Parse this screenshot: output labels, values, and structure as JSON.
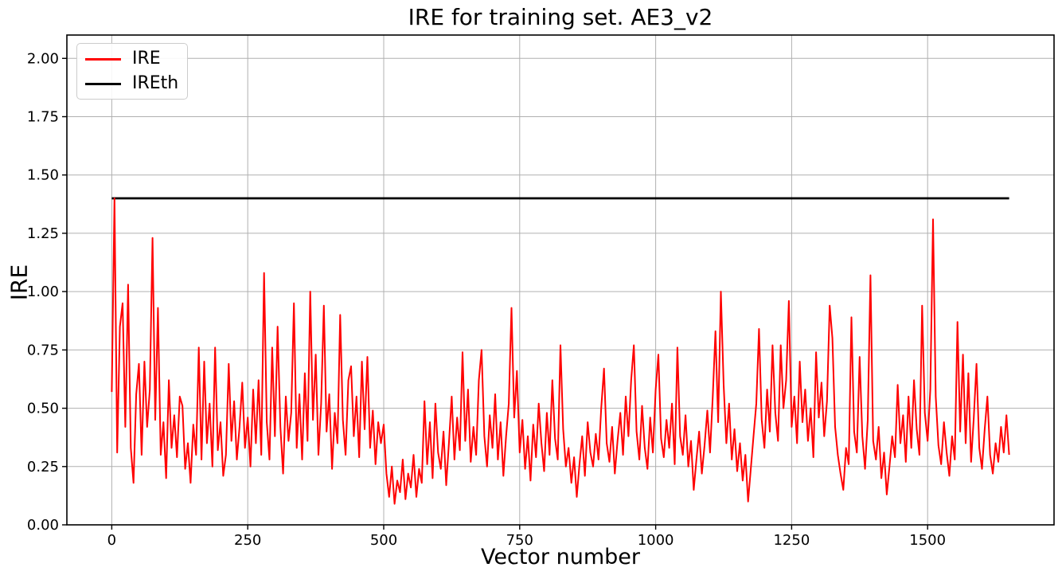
{
  "figure": {
    "title": "IRE for training set. AE3_v2",
    "xlabel": "Vector number",
    "ylabel": "IRE"
  },
  "legend": {
    "position": "upper left",
    "items": [
      {
        "label": "IRE",
        "color": "#ff0000"
      },
      {
        "label": "IREth",
        "color": "#000000"
      }
    ]
  },
  "chart_data": {
    "type": "line",
    "title": "IRE for training set. AE3_v2",
    "xlabel": "Vector number",
    "ylabel": "IRE",
    "grid": true,
    "grid_color": "#b0b0b0",
    "background": "#ffffff",
    "legend_position": "upper left",
    "xlim": [
      -82.5,
      1732.5
    ],
    "ylim": [
      0,
      2.1
    ],
    "xticks": {
      "values": [
        0,
        250,
        500,
        750,
        1000,
        1250,
        1500
      ],
      "labels": [
        "0",
        "250",
        "500",
        "750",
        "1000",
        "1250",
        "1500"
      ]
    },
    "yticks": {
      "values": [
        0,
        0.25,
        0.5,
        0.75,
        1.0,
        1.25,
        1.5,
        1.75,
        2.0
      ],
      "labels": [
        "0.00",
        "0.25",
        "0.50",
        "0.75",
        "1.00",
        "1.25",
        "1.50",
        "1.75",
        "2.00"
      ]
    },
    "series": [
      {
        "name": "IRE",
        "color": "#ff0000",
        "line_width": 2,
        "x_start": 0,
        "x_step": 5,
        "sampling": "downsampled estimate of ~1650-point noisy trace, step 5",
        "values": [
          0.57,
          1.4,
          0.31,
          0.85,
          0.95,
          0.42,
          1.03,
          0.33,
          0.18,
          0.56,
          0.69,
          0.3,
          0.7,
          0.42,
          0.58,
          1.23,
          0.45,
          0.93,
          0.3,
          0.44,
          0.2,
          0.62,
          0.33,
          0.47,
          0.29,
          0.55,
          0.51,
          0.24,
          0.35,
          0.18,
          0.43,
          0.3,
          0.76,
          0.28,
          0.7,
          0.35,
          0.52,
          0.25,
          0.76,
          0.32,
          0.44,
          0.21,
          0.3,
          0.69,
          0.36,
          0.53,
          0.28,
          0.42,
          0.61,
          0.33,
          0.46,
          0.25,
          0.58,
          0.35,
          0.62,
          0.3,
          1.08,
          0.44,
          0.28,
          0.76,
          0.38,
          0.85,
          0.42,
          0.22,
          0.55,
          0.36,
          0.48,
          0.95,
          0.33,
          0.56,
          0.28,
          0.65,
          0.36,
          1.0,
          0.45,
          0.73,
          0.3,
          0.52,
          0.94,
          0.4,
          0.56,
          0.24,
          0.48,
          0.35,
          0.9,
          0.45,
          0.3,
          0.62,
          0.68,
          0.38,
          0.55,
          0.29,
          0.7,
          0.41,
          0.72,
          0.33,
          0.49,
          0.26,
          0.44,
          0.35,
          0.43,
          0.22,
          0.12,
          0.25,
          0.09,
          0.19,
          0.14,
          0.28,
          0.11,
          0.22,
          0.16,
          0.3,
          0.12,
          0.24,
          0.18,
          0.53,
          0.26,
          0.44,
          0.2,
          0.52,
          0.31,
          0.24,
          0.4,
          0.17,
          0.35,
          0.55,
          0.28,
          0.46,
          0.32,
          0.74,
          0.36,
          0.58,
          0.27,
          0.42,
          0.3,
          0.62,
          0.75,
          0.38,
          0.25,
          0.47,
          0.33,
          0.56,
          0.28,
          0.44,
          0.21,
          0.38,
          0.52,
          0.93,
          0.46,
          0.66,
          0.31,
          0.45,
          0.24,
          0.38,
          0.19,
          0.43,
          0.29,
          0.52,
          0.35,
          0.23,
          0.48,
          0.3,
          0.62,
          0.37,
          0.28,
          0.77,
          0.41,
          0.25,
          0.33,
          0.18,
          0.29,
          0.12,
          0.26,
          0.38,
          0.21,
          0.44,
          0.31,
          0.25,
          0.39,
          0.28,
          0.5,
          0.67,
          0.35,
          0.27,
          0.42,
          0.22,
          0.36,
          0.48,
          0.3,
          0.55,
          0.38,
          0.62,
          0.77,
          0.4,
          0.28,
          0.51,
          0.33,
          0.24,
          0.46,
          0.31,
          0.58,
          0.73,
          0.37,
          0.29,
          0.45,
          0.33,
          0.52,
          0.26,
          0.76,
          0.38,
          0.3,
          0.47,
          0.25,
          0.36,
          0.15,
          0.28,
          0.4,
          0.22,
          0.34,
          0.49,
          0.31,
          0.55,
          0.83,
          0.44,
          1.0,
          0.6,
          0.35,
          0.52,
          0.28,
          0.41,
          0.23,
          0.35,
          0.19,
          0.3,
          0.1,
          0.24,
          0.38,
          0.52,
          0.84,
          0.45,
          0.33,
          0.58,
          0.4,
          0.77,
          0.48,
          0.36,
          0.77,
          0.5,
          0.62,
          0.96,
          0.42,
          0.55,
          0.35,
          0.7,
          0.44,
          0.58,
          0.36,
          0.5,
          0.29,
          0.74,
          0.46,
          0.61,
          0.38,
          0.53,
          0.94,
          0.8,
          0.42,
          0.3,
          0.22,
          0.15,
          0.33,
          0.26,
          0.89,
          0.4,
          0.31,
          0.72,
          0.38,
          0.24,
          0.45,
          1.07,
          0.36,
          0.28,
          0.42,
          0.2,
          0.31,
          0.13,
          0.25,
          0.38,
          0.29,
          0.6,
          0.35,
          0.47,
          0.27,
          0.55,
          0.33,
          0.62,
          0.41,
          0.3,
          0.94,
          0.48,
          0.36,
          0.58,
          1.31,
          0.55,
          0.34,
          0.26,
          0.44,
          0.31,
          0.21,
          0.38,
          0.28,
          0.87,
          0.4,
          0.73,
          0.35,
          0.65,
          0.27,
          0.46,
          0.69,
          0.33,
          0.24,
          0.41,
          0.55,
          0.3,
          0.22,
          0.35,
          0.27,
          0.42,
          0.31,
          0.47,
          0.3
        ]
      },
      {
        "name": "IREth",
        "color": "#000000",
        "line_width": 2.8,
        "x": [
          0,
          1650
        ],
        "values": [
          1.4,
          1.4
        ]
      }
    ]
  }
}
